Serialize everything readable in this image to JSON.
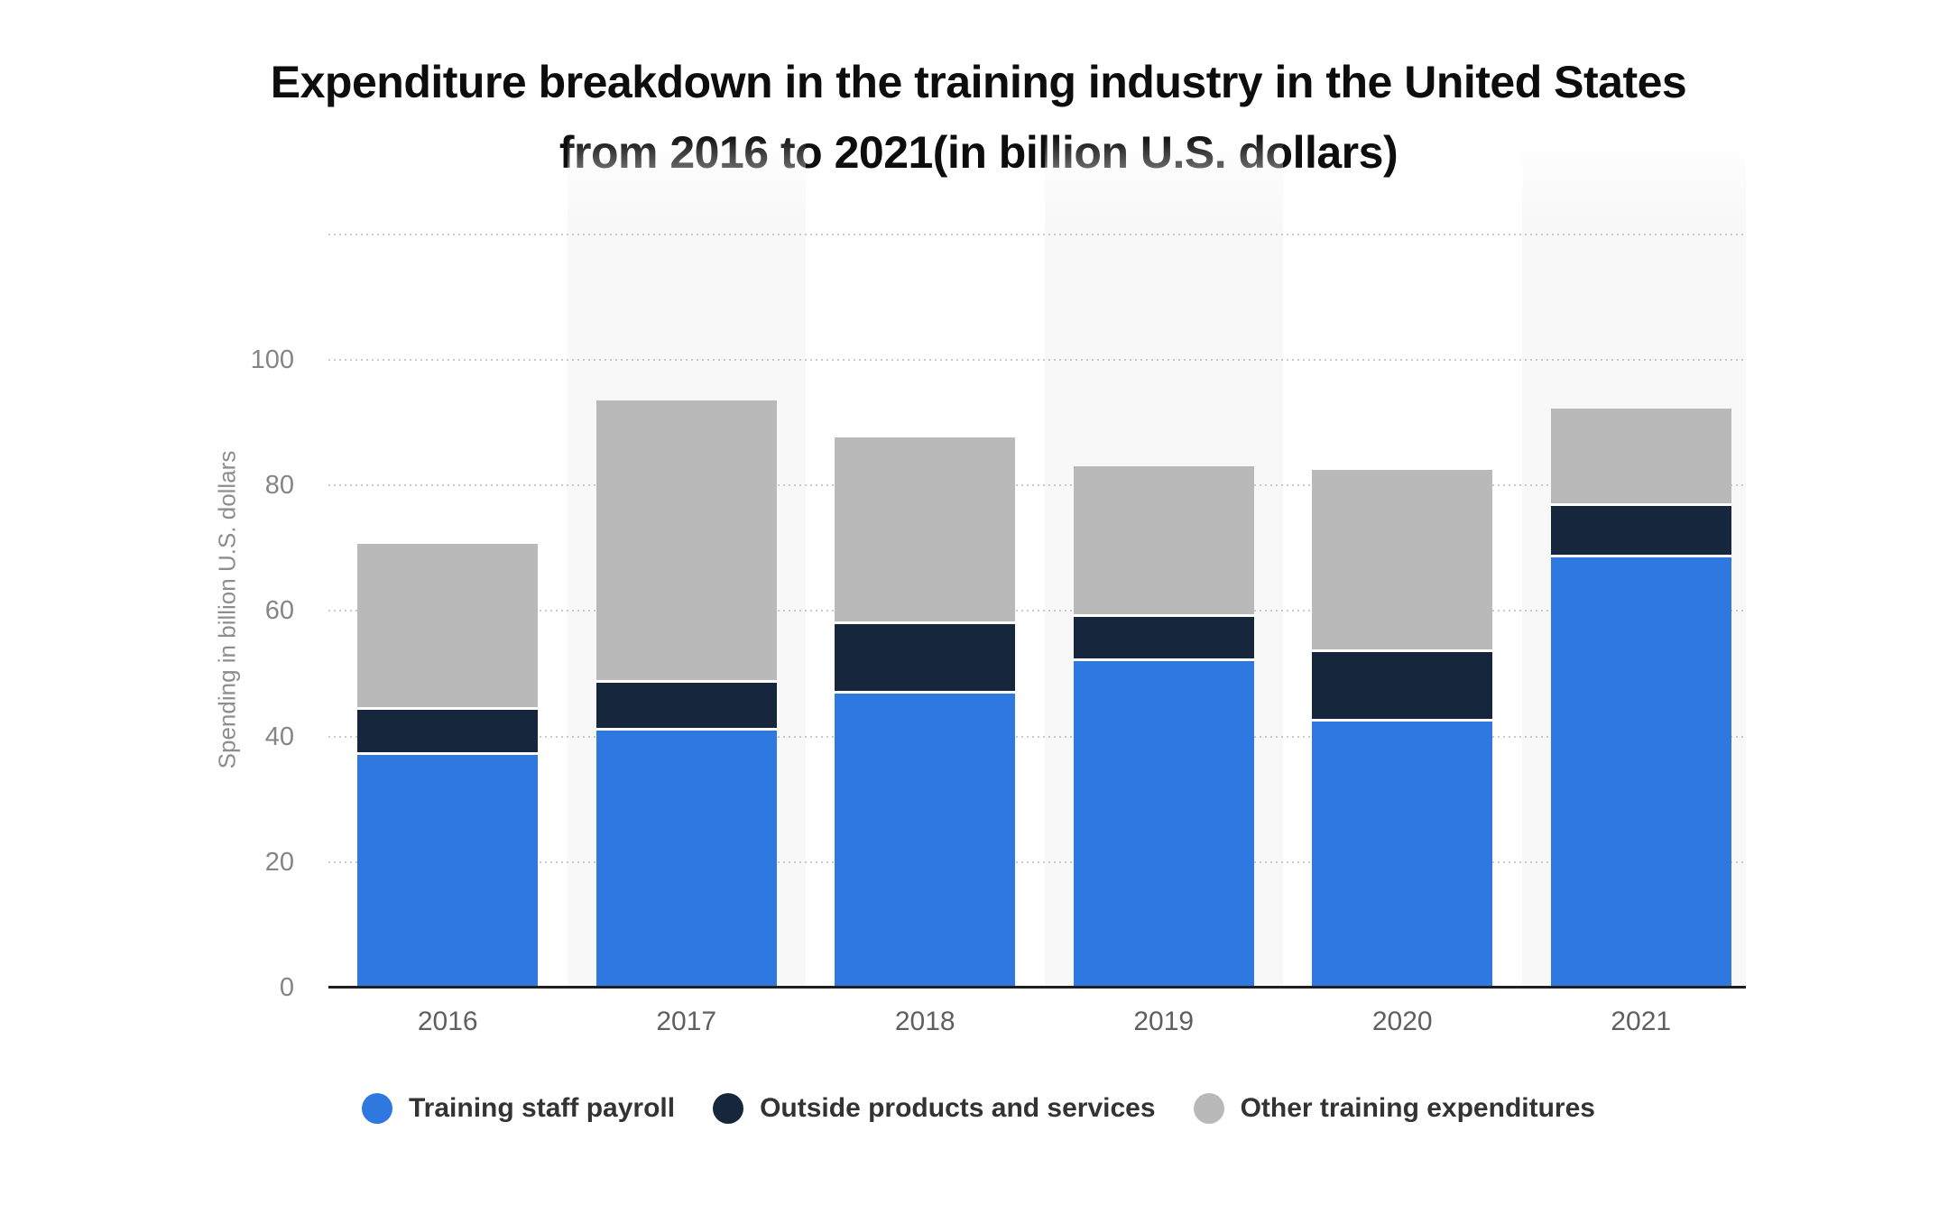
{
  "title": {
    "line1": "Expenditure breakdown in the training industry in the United States",
    "line2": "from 2016 to 2021(in billion U.S. dollars)"
  },
  "chart_data": {
    "type": "bar",
    "stacked": true,
    "categories": [
      "2016",
      "2017",
      "2018",
      "2019",
      "2020",
      "2021"
    ],
    "series": [
      {
        "name": "Training staff payroll",
        "color": "#2e78e0",
        "values": [
          37.0,
          41.0,
          46.9,
          52.0,
          42.4,
          68.6
        ]
      },
      {
        "name": "Outside products and services",
        "color": "#16263c",
        "values": [
          7.3,
          7.5,
          11.0,
          7.1,
          11.1,
          8.1
        ]
      },
      {
        "name": "Other training expenditures",
        "color": "#b9b9b9",
        "values": [
          26.4,
          45.1,
          29.7,
          23.9,
          29.0,
          15.6
        ]
      }
    ],
    "title": "Expenditure breakdown in the training industry in the United States from 2016 to 2021(in billion U.S. dollars)",
    "xlabel": "",
    "ylabel": "Spending in billion U.S. dollars",
    "yticks": [
      0,
      20,
      40,
      60,
      80,
      100
    ],
    "ylim": [
      0,
      120
    ],
    "grid": "dotted-horizontal",
    "legend_position": "bottom",
    "highlighted_column_indexes": [
      1,
      3,
      5
    ]
  },
  "colors": {
    "background": "#ffffff",
    "column_band": "#f8f8f8",
    "gridline": "#c9c9c9",
    "axis_line": "#1f1f1f",
    "x_tick_label": "#5f5f5f",
    "y_tick_label": "#858585",
    "y_axis_title": "#8d8d8d",
    "legend_text": "#333333",
    "title_text": "#0d0d0d",
    "segment_separator": "#ffffff"
  }
}
